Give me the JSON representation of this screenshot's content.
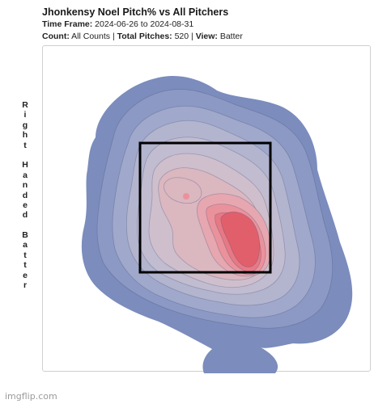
{
  "chart_data": {
    "type": "heatmap",
    "title": "Jhonkensy Noel Pitch% vs All Pitchers",
    "time_frame": {
      "label": "Time Frame:",
      "value": "2024-06-26 to 2024-08-31"
    },
    "count": {
      "label": "Count:",
      "value": "All Counts"
    },
    "total_pitches": {
      "label": "Total Pitches:",
      "value": "520"
    },
    "view": {
      "label": "View:",
      "value": "Batter"
    },
    "batter_side": "Right Handed Batter",
    "strike_zone": true,
    "color_scale": {
      "low": "#7b8cbd",
      "high": "#e15864",
      "levels": [
        "#7b8cbd",
        "#8c99c4",
        "#a0a8cb",
        "#b3b5cf",
        "#c2bcd1",
        "#cfbfcc",
        "#dbb7c0",
        "#e6a7b0",
        "#ea929c",
        "#e77984",
        "#e15f6b"
      ]
    }
  },
  "watermark": "imgflip.com"
}
